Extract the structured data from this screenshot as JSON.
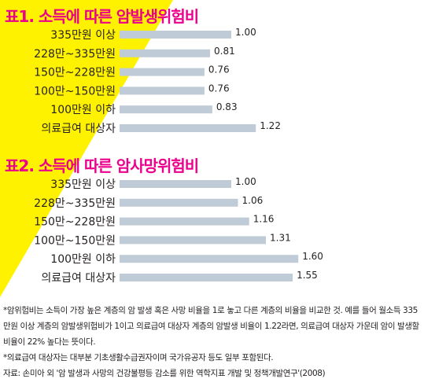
{
  "chart_data": [
    {
      "type": "bar",
      "orientation": "horizontal",
      "title": "표1. 소득에 따른 암발생위험비",
      "categories": [
        "335만원 이상",
        "228만~335만원",
        "150만~228만원",
        "100만~150만원",
        "100만원 이하",
        "의료급여 대상자"
      ],
      "values": [
        1.0,
        0.81,
        0.76,
        0.76,
        0.83,
        1.22
      ],
      "value_labels": [
        "1.00",
        "0.81",
        "0.76",
        "0.76",
        "0.83",
        "1.22"
      ],
      "xlim": [
        0,
        2.1
      ],
      "grid": false
    },
    {
      "type": "bar",
      "orientation": "horizontal",
      "title": "표2. 소득에 따른 암사망위험비",
      "categories": [
        "335만원 이상",
        "228만~335만원",
        "150만~228만원",
        "100만~150만원",
        "100만원 이하",
        "의료급여 대상자"
      ],
      "values": [
        1.0,
        1.06,
        1.16,
        1.31,
        1.6,
        1.55
      ],
      "value_labels": [
        "1.00",
        "1.06",
        "1.16",
        "1.31",
        "1.60",
        "1.55"
      ],
      "xlim": [
        0,
        2.1
      ],
      "grid": false
    }
  ],
  "colors": {
    "title": "#ec008c",
    "bar": "#bfcbd6",
    "highlight": "#fff200",
    "text": "#231f20"
  },
  "notes": [
    "*암위험비는 소득이 가장 높은 계층의 암 발생 혹은 사망 비율을 1로 놓고 다른 계층의 비율을 비교한 것. 예를 들어 월소득 335만원 이상 계층의 암발생위험비가 1이고 의료급여 대상자 계층의 암발생 비율이 1.22라면, 의료급여 대상자 가운데 암이 발생할 비율이 22% 높다는 뜻이다.",
    "*의료급여 대상자는 대부분 기초생활수급권자이며 국가유공자 등도 일부 포함된다.",
    "자료: 손미아 외 '암 발생과 사망의 건강불평등 감소를 위한 역학지표 개발 및 정책개발연구'(2008)"
  ]
}
